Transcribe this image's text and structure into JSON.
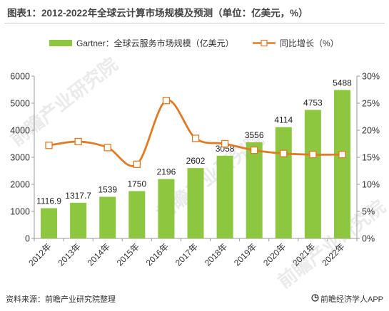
{
  "title": "图表1：2012-2022年全球云计算市场规模及预测（单位：亿美元，%）",
  "source": "资料来源：前瞻产业研究院整理",
  "brand": "前瞻经济学人APP",
  "watermark": "前瞻产业研究院",
  "colors": {
    "bar": "#8dc63f",
    "line": "#e07b25",
    "marker_fill": "#ffffff",
    "axis_text": "#333333",
    "title_text": "#444444"
  },
  "chart_data": {
    "type": "bar",
    "categories": [
      "2012年",
      "2013年",
      "2014年",
      "2015年",
      "2016年",
      "2017年",
      "2018年",
      "2019年",
      "2020年",
      "2021年",
      "2022年"
    ],
    "series": [
      {
        "name": "Gartner：全球云服务市场规模（亿美元）",
        "type": "bar",
        "axis": "left",
        "values": [
          1116.9,
          1317.7,
          1539,
          1750,
          2196,
          2602,
          3058,
          3556,
          4114,
          4753,
          5488
        ],
        "labels": [
          "1116.9",
          "1317.7",
          "1539",
          "1750",
          "2196",
          "2602",
          "3058",
          "3556",
          "4114",
          "4753",
          "5488"
        ]
      },
      {
        "name": "同比增长（%）",
        "type": "line",
        "axis": "right",
        "values": [
          17.2,
          17.9,
          16.8,
          13.7,
          25.5,
          18.5,
          17.5,
          16.3,
          15.7,
          15.5,
          15.5
        ]
      }
    ],
    "y_left": {
      "min": 0,
      "max": 6000,
      "ticks": [
        "0",
        "1000",
        "2000",
        "3000",
        "4000",
        "5000",
        "6000"
      ]
    },
    "y_right": {
      "min": 0,
      "max": 30,
      "ticks": [
        "0%",
        "5%",
        "10%",
        "15%",
        "20%",
        "25%",
        "30%"
      ]
    },
    "legend_position": "top",
    "grid": false
  }
}
